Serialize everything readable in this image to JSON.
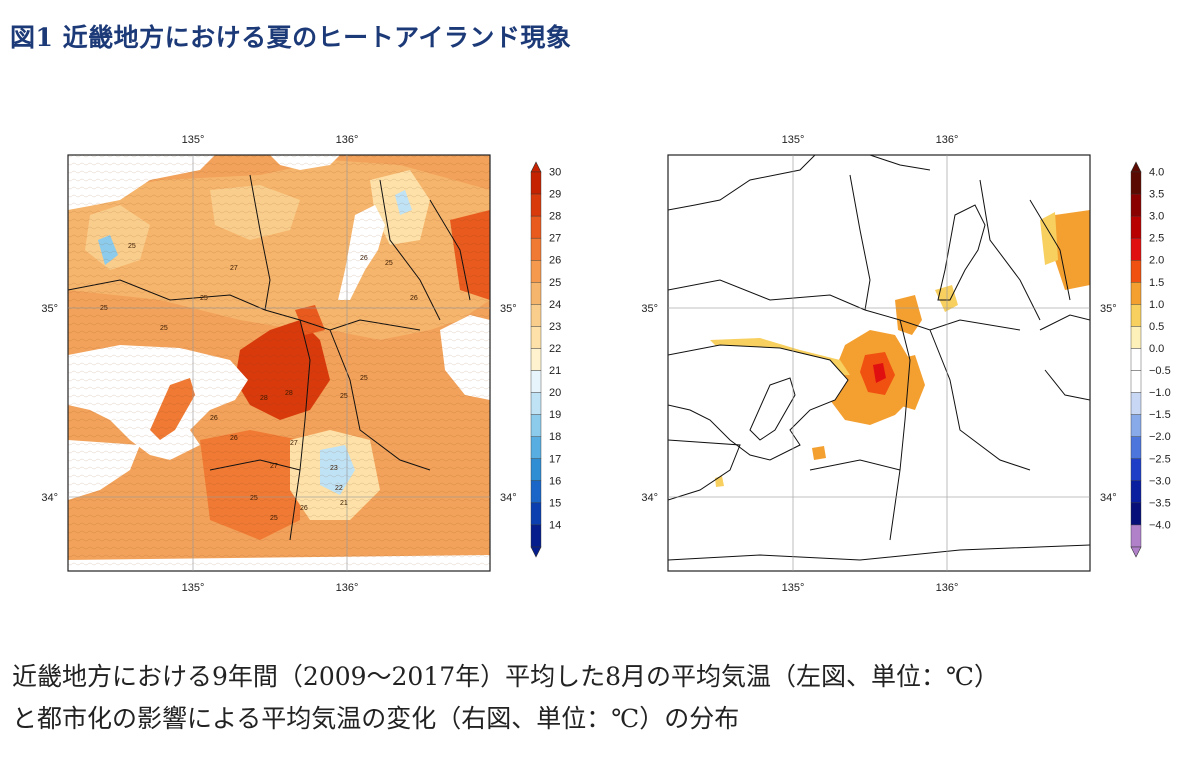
{
  "title": "図1 近畿地方における夏のヒートアイランド現象",
  "caption": {
    "line1": "近畿地方における9年間（2009〜2017年）平均した8月の平均気温（左図、単位：℃）",
    "line2": "と都市化の影響による平均気温の変化（右図、単位：℃）の分布"
  },
  "left_map": {
    "lon_ticks": [
      "135°",
      "136°"
    ],
    "lat_ticks": [
      "35°",
      "34°"
    ],
    "contour_labels": [
      "25",
      "25",
      "25",
      "25",
      "26",
      "27",
      "27",
      "27",
      "28",
      "28",
      "26",
      "25",
      "26",
      "26",
      "25",
      "25",
      "23",
      "22",
      "21",
      "25",
      "25",
      "26"
    ],
    "colorbar": {
      "labels": [
        "30",
        "29",
        "28",
        "27",
        "26",
        "25",
        "24",
        "23",
        "22",
        "21",
        "20",
        "19",
        "18",
        "17",
        "16",
        "15",
        "14"
      ],
      "colors": [
        "#c42200",
        "#d83a0c",
        "#e85a1e",
        "#f07a34",
        "#f4994e",
        "#f6b56c",
        "#f9cd8c",
        "#fde1a8",
        "#fff2cf",
        "#e8f4fb",
        "#bfe2f5",
        "#8ccbeb",
        "#58aee0",
        "#2f8dd4",
        "#1a66c8",
        "#0b3fb0",
        "#061e8c"
      ],
      "unit": "℃"
    }
  },
  "right_map": {
    "lon_ticks": [
      "135°",
      "136°"
    ],
    "lat_ticks": [
      "35°",
      "34°"
    ],
    "colorbar": {
      "labels": [
        "4.0",
        "3.5",
        "3.0",
        "2.5",
        "2.0",
        "1.5",
        "1.0",
        "0.5",
        "0.0",
        "−0.5",
        "−1.0",
        "−1.5",
        "−2.0",
        "−2.5",
        "−3.0",
        "−3.5",
        "−4.0"
      ],
      "colors": [
        "#5a0a00",
        "#8a0000",
        "#b80000",
        "#e01010",
        "#f05010",
        "#f4a030",
        "#f8d060",
        "#fdf0b8",
        "#ffffff",
        "#ffffff",
        "#c8d8f4",
        "#88aae8",
        "#4d76dc",
        "#1e3ec8",
        "#0a1fa0",
        "#061078",
        "#b080c8"
      ],
      "unit": "℃"
    }
  }
}
